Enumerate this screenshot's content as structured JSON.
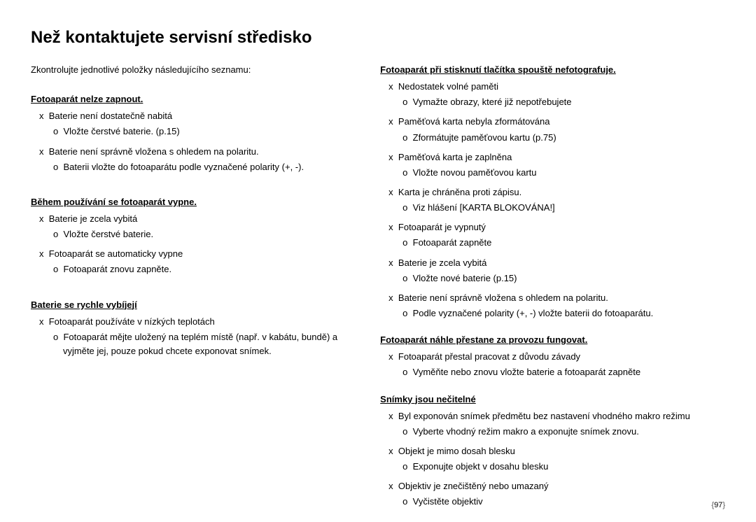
{
  "title": "Než kontaktujete servisní středisko",
  "intro": "Zkontrolujte jednotlivé položky následujícího seznamu:",
  "bullet_x": "x",
  "bullet_o": "o",
  "left": [
    {
      "header": "Fotoaparát nelze zapnout.",
      "items": [
        {
          "text": "Baterie není dostatečně nabitá",
          "subs": [
            "Vložte čerstvé baterie. (p.15)"
          ]
        },
        {
          "text": "Baterie není správně vložena s ohledem na polaritu.",
          "subs": [
            "Baterii vložte do fotoaparátu podle vyznačené polarity (+, -)."
          ]
        }
      ]
    },
    {
      "header": "Během používání se fotoaparát vypne.",
      "items": [
        {
          "text": "Baterie je zcela vybitá",
          "subs": [
            "Vložte čerstvé baterie."
          ]
        },
        {
          "text": "Fotoaparát se automaticky vypne",
          "subs": [
            "Fotoaparát znovu zapněte."
          ]
        }
      ]
    },
    {
      "header": "Baterie se rychle vybíjejí",
      "items": [
        {
          "text": "Fotoaparát používáte v nízkých teplotách",
          "subs": [
            "Fotoaparát mějte uložený na teplém místě (např. v kabátu, bundě) a vyjměte jej, pouze pokud chcete exponovat snímek."
          ]
        }
      ]
    }
  ],
  "right": [
    {
      "header": "Fotoaparát při stisknutí tlačítka spouště nefotografuje.",
      "items": [
        {
          "text": "Nedostatek volné paměti",
          "subs": [
            "Vymažte obrazy, které již nepotřebujete"
          ]
        },
        {
          "text": "Paměťová karta nebyla zformátována",
          "subs": [
            "Zformátujte paměťovou kartu (p.75)"
          ]
        },
        {
          "text": "Paměťová karta je zaplněna",
          "subs": [
            "Vložte novou paměťovou kartu"
          ]
        },
        {
          "text": "Karta je chráněna proti zápisu.",
          "subs": [
            "Viz hlášení [KARTA BLOKOVÁNA!]"
          ]
        },
        {
          "text": "Fotoaparát je vypnutý",
          "subs": [
            "Fotoaparát zapněte"
          ]
        },
        {
          "text": "Baterie je zcela vybitá",
          "subs": [
            "Vložte nové baterie (p.15)"
          ]
        },
        {
          "text": "Baterie není správně vložena s ohledem na polaritu.",
          "subs": [
            "Podle vyznačené polarity (+, -) vložte baterii do fotoaparátu."
          ]
        }
      ]
    },
    {
      "header": "Fotoaparát náhle přestane za provozu fungovat.",
      "items": [
        {
          "text": "Fotoaparát přestal pracovat z důvodu závady",
          "subs": [
            "Vyměňte nebo znovu vložte baterie a fotoaparát zapněte"
          ]
        }
      ]
    },
    {
      "header": "Snímky jsou nečitelné",
      "items": [
        {
          "text": "Byl exponován snímek předmětu bez nastavení vhodného makro režimu",
          "subs": [
            "Vyberte vhodný režim makro a exponujte snímek znovu."
          ]
        },
        {
          "text": "Objekt je mimo dosah blesku",
          "subs": [
            "Exponujte objekt v dosahu blesku"
          ]
        },
        {
          "text": "Objektiv je znečištěný nebo umazaný",
          "subs": [
            "Vyčistěte objektiv"
          ]
        }
      ]
    }
  ],
  "page_number": "97",
  "page_brace_l": "{",
  "page_brace_r": "}",
  "colors": {
    "text": "#000000",
    "background": "#ffffff",
    "pagenum_braces": "#888888"
  },
  "fonts": {
    "title_size_pt": 18,
    "body_size_pt": 10,
    "pagenum_size_pt": 8
  }
}
